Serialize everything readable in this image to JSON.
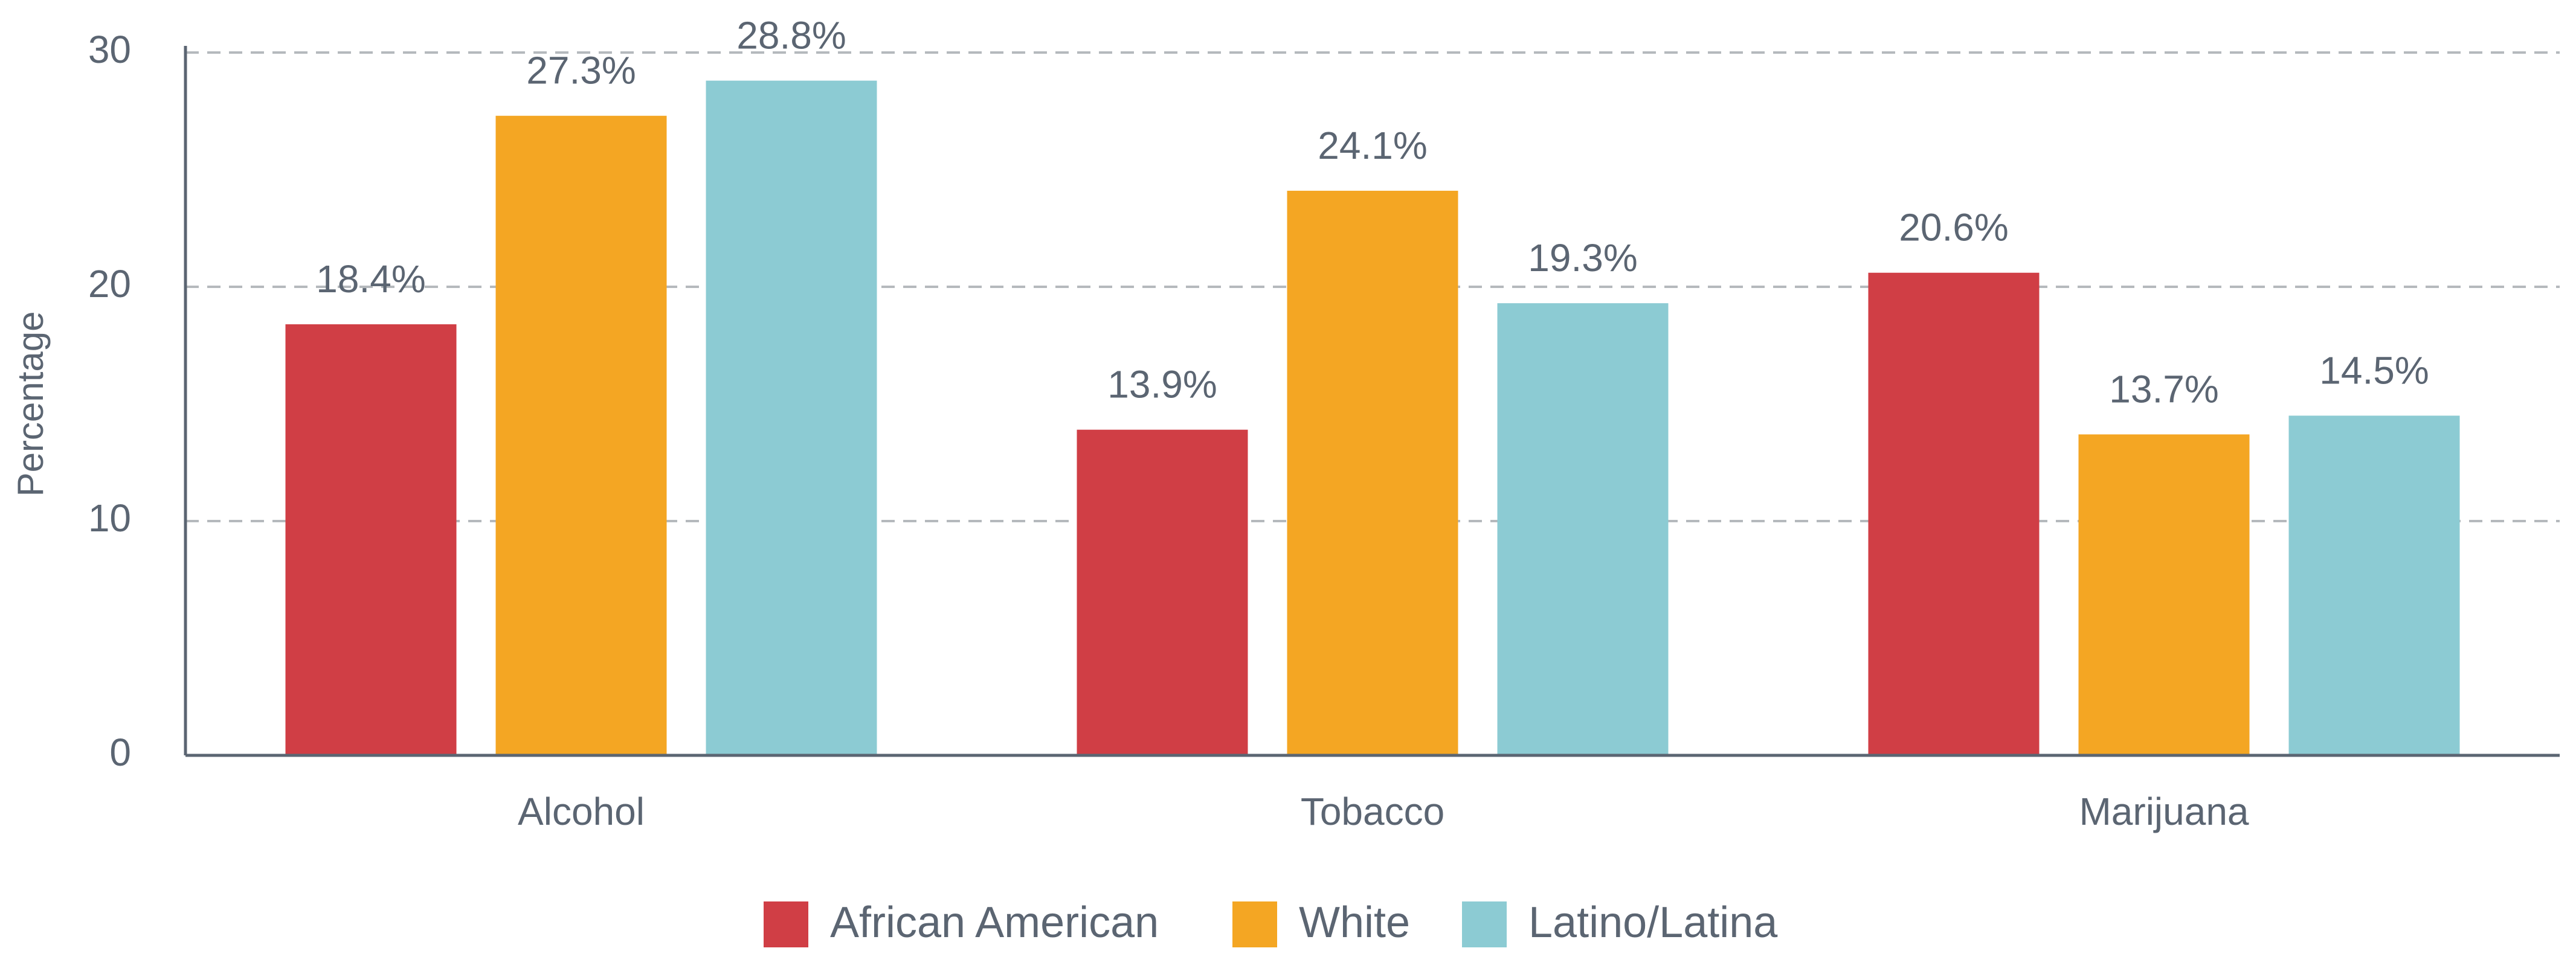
{
  "chart_data": {
    "type": "bar",
    "y_label": "Percentage",
    "categories": [
      "Alcohol",
      "Tobacco",
      "Marijuana"
    ],
    "series": [
      {
        "name": "African American",
        "color": "#d03e45",
        "values": [
          18.4,
          13.9,
          20.6
        ],
        "value_labels": [
          "18.4%",
          "13.9%",
          "20.6%"
        ]
      },
      {
        "name": "White",
        "color": "#f4a623",
        "values": [
          27.3,
          24.1,
          13.7
        ],
        "value_labels": [
          "27.3%",
          "24.1%",
          "13.7%"
        ]
      },
      {
        "name": "Latino/Latina",
        "color": "#8ccbd3",
        "values": [
          28.8,
          19.3,
          14.5
        ],
        "value_labels": [
          "28.8%",
          "19.3%",
          "14.5%"
        ]
      }
    ],
    "ylim": [
      0,
      30
    ],
    "yticks": [
      0,
      10,
      20,
      30
    ],
    "grid": true,
    "legend": "bottom"
  }
}
